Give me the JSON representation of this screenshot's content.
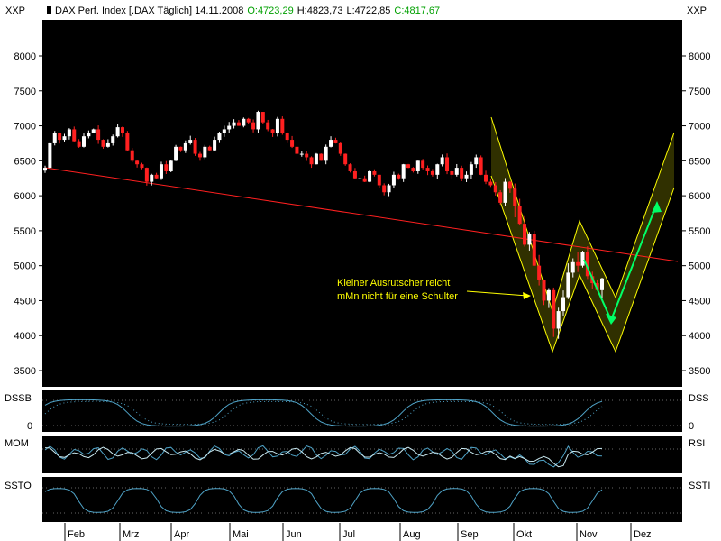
{
  "header": {
    "symbol_label": "XXP",
    "title": "DAX Perf. Index [.DAX  Täglich] 14.11.2008",
    "open": "O:4723,29",
    "high": "H:4823,73",
    "low": "L:4722,85",
    "close": "C:4817,67",
    "right_symbol_label": "XXP"
  },
  "colors": {
    "background": "#000000",
    "up_candle": "#ffffff",
    "down_candle": "#ff0000",
    "trendline": "#ff2020",
    "channel": "#ffff00",
    "channel_fill": "#505000",
    "arrow": "#00ff66",
    "oscillator": "#4fa3c7",
    "open_value": "#00c000",
    "close_value": "#00c000"
  },
  "annotation": {
    "line1": "Kleiner Ausrutscher reicht",
    "line2": "mMn nicht für eine Schulter"
  },
  "panels": {
    "dss_left": "DSSB",
    "dss_right": "DSS",
    "dss_zero_left": "0",
    "dss_zero_right": "0",
    "mom_left": "MOM",
    "mom_right": "RSI",
    "ssto_left": "SSTO",
    "ssti_right": "SSTI"
  },
  "chart_data": {
    "type": "candlestick",
    "ylim": [
      3200,
      8400
    ],
    "yticks": [
      3500,
      4000,
      4500,
      5000,
      5500,
      6000,
      6500,
      7000,
      7500,
      8000
    ],
    "ytick_labels": [
      "3500",
      "4000",
      "4500",
      "5000",
      "5500",
      "6000",
      "6500",
      "7000",
      "7500",
      "8000"
    ],
    "months": [
      "Feb",
      "Mrz",
      "Apr",
      "Mai",
      "Jun",
      "Jul",
      "Aug",
      "Sep",
      "Okt",
      "Nov",
      "Dez"
    ],
    "closes": [
      6400,
      6750,
      6900,
      6800,
      6850,
      6950,
      6780,
      6700,
      6850,
      6900,
      6950,
      6800,
      6700,
      6750,
      6850,
      6980,
      6900,
      6650,
      6500,
      6450,
      6400,
      6200,
      6300,
      6250,
      6450,
      6350,
      6500,
      6700,
      6650,
      6750,
      6800,
      6600,
      6550,
      6700,
      6650,
      6800,
      6900,
      6950,
      7000,
      7050,
      7000,
      7100,
      7050,
      6950,
      7200,
      7050,
      6950,
      6900,
      7100,
      6900,
      6800,
      6700,
      6600,
      6600,
      6550,
      6450,
      6600,
      6500,
      6700,
      6800,
      6750,
      6600,
      6450,
      6350,
      6250,
      6250,
      6200,
      6350,
      6300,
      6150,
      6050,
      6150,
      6300,
      6250,
      6450,
      6400,
      6350,
      6500,
      6400,
      6350,
      6300,
      6450,
      6550,
      6350,
      6300,
      6400,
      6250,
      6300,
      6450,
      6550,
      6300,
      6200,
      6150,
      6050,
      5900,
      6200,
      6100,
      5850,
      5600,
      5300,
      5450,
      5000,
      4800,
      4500,
      4650,
      4100,
      4350,
      4550,
      4900,
      5050,
      5000,
      5200,
      4850,
      4750,
      4650,
      4817.67
    ]
  }
}
